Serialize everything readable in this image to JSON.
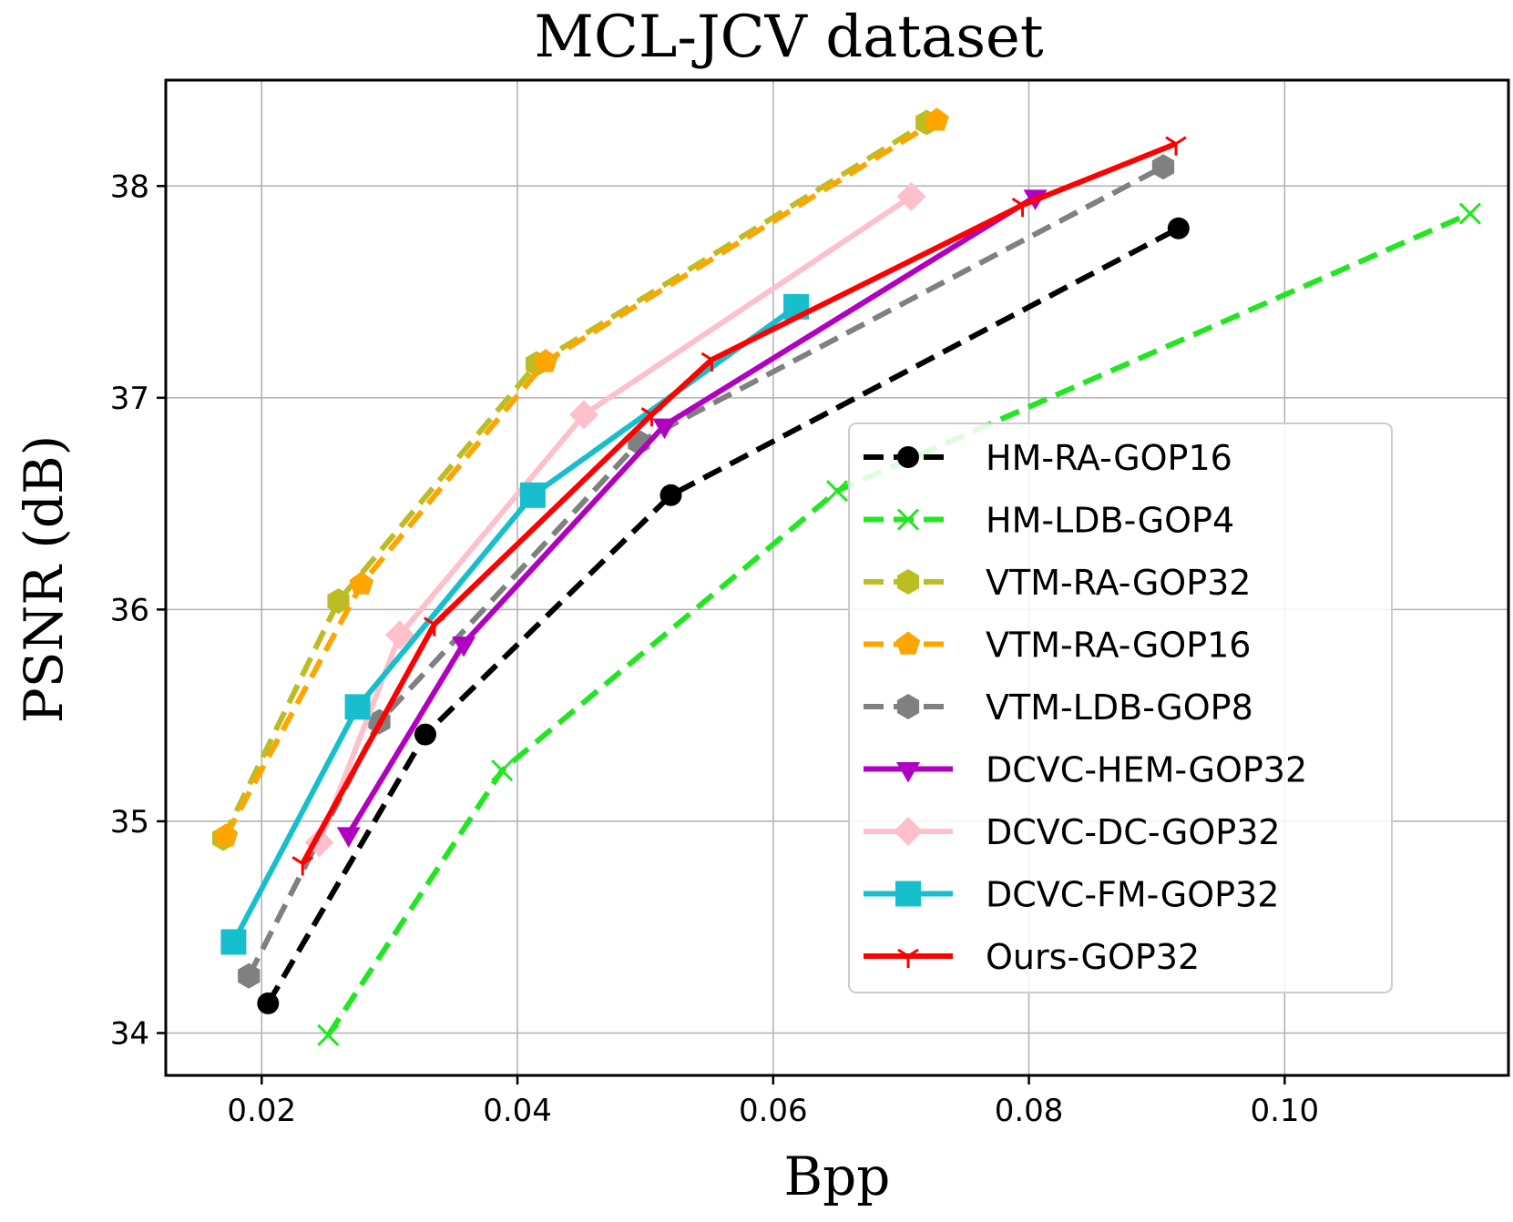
{
  "chart_data": {
    "type": "line",
    "title": "MCL-JCV dataset",
    "xlabel": "Bpp",
    "ylabel": "PSNR (dB)",
    "xlim": [
      0.0125,
      0.1175
    ],
    "ylim": [
      33.8,
      38.5
    ],
    "xticks": [
      0.02,
      0.04,
      0.06,
      0.08,
      0.1
    ],
    "xtick_labels": [
      "0.02",
      "0.04",
      "0.06",
      "0.08",
      "0.10"
    ],
    "yticks": [
      34,
      35,
      36,
      37,
      38
    ],
    "ytick_labels": [
      "34",
      "35",
      "36",
      "37",
      "38"
    ],
    "grid": true,
    "legend_position": "lower-right",
    "series": [
      {
        "name": "HM-RA-GOP16",
        "color": "#000000",
        "dash": true,
        "marker": "circle",
        "x": [
          0.0205,
          0.0328,
          0.052,
          0.0917
        ],
        "y": [
          34.14,
          35.41,
          36.54,
          37.8
        ]
      },
      {
        "name": "HM-LDB-GOP4",
        "color": "#22e622",
        "dash": true,
        "marker": "x",
        "x": [
          0.0252,
          0.0388,
          0.065,
          0.1145
        ],
        "y": [
          33.99,
          35.24,
          36.56,
          37.87
        ]
      },
      {
        "name": "VTM-RA-GOP32",
        "color": "#bcbd22",
        "dash": true,
        "marker": "hexagon",
        "x": [
          0.017,
          0.026,
          0.0415,
          0.072
        ],
        "y": [
          34.92,
          36.04,
          37.16,
          38.3
        ]
      },
      {
        "name": "VTM-RA-GOP16",
        "color": "#ffa500",
        "dash": true,
        "marker": "pentagon",
        "x": [
          0.0172,
          0.0278,
          0.0422,
          0.0728
        ],
        "y": [
          34.93,
          36.12,
          37.17,
          38.31
        ]
      },
      {
        "name": "VTM-LDB-GOP8",
        "color": "#808080",
        "dash": true,
        "marker": "hexagon",
        "x": [
          0.019,
          0.0292,
          0.0495,
          0.0905
        ],
        "y": [
          34.27,
          35.47,
          36.79,
          38.09
        ]
      },
      {
        "name": "DCVC-HEM-GOP32",
        "color": "#b000c0",
        "dash": false,
        "marker": "triangle-down",
        "x": [
          0.0268,
          0.0358,
          0.0515,
          0.0805
        ],
        "y": [
          34.94,
          35.84,
          36.87,
          37.95
        ]
      },
      {
        "name": "DCVC-DC-GOP32",
        "color": "#ffc0cb",
        "dash": false,
        "marker": "diamond",
        "x": [
          0.0245,
          0.0308,
          0.0452,
          0.0708
        ],
        "y": [
          34.9,
          35.88,
          36.92,
          37.95
        ]
      },
      {
        "name": "DCVC-FM-GOP32",
        "color": "#17bfcc",
        "dash": false,
        "marker": "square",
        "x": [
          0.0178,
          0.0275,
          0.0412,
          0.0618
        ],
        "y": [
          34.43,
          35.54,
          36.54,
          37.43
        ]
      },
      {
        "name": "Ours-GOP32",
        "color": "#ff0000",
        "dash": false,
        "marker": "tri-down",
        "x": [
          0.0232,
          0.0335,
          0.0505,
          0.0552,
          0.0795,
          0.0915
        ],
        "y": [
          34.8,
          35.93,
          36.92,
          37.18,
          37.91,
          38.2
        ]
      }
    ]
  }
}
